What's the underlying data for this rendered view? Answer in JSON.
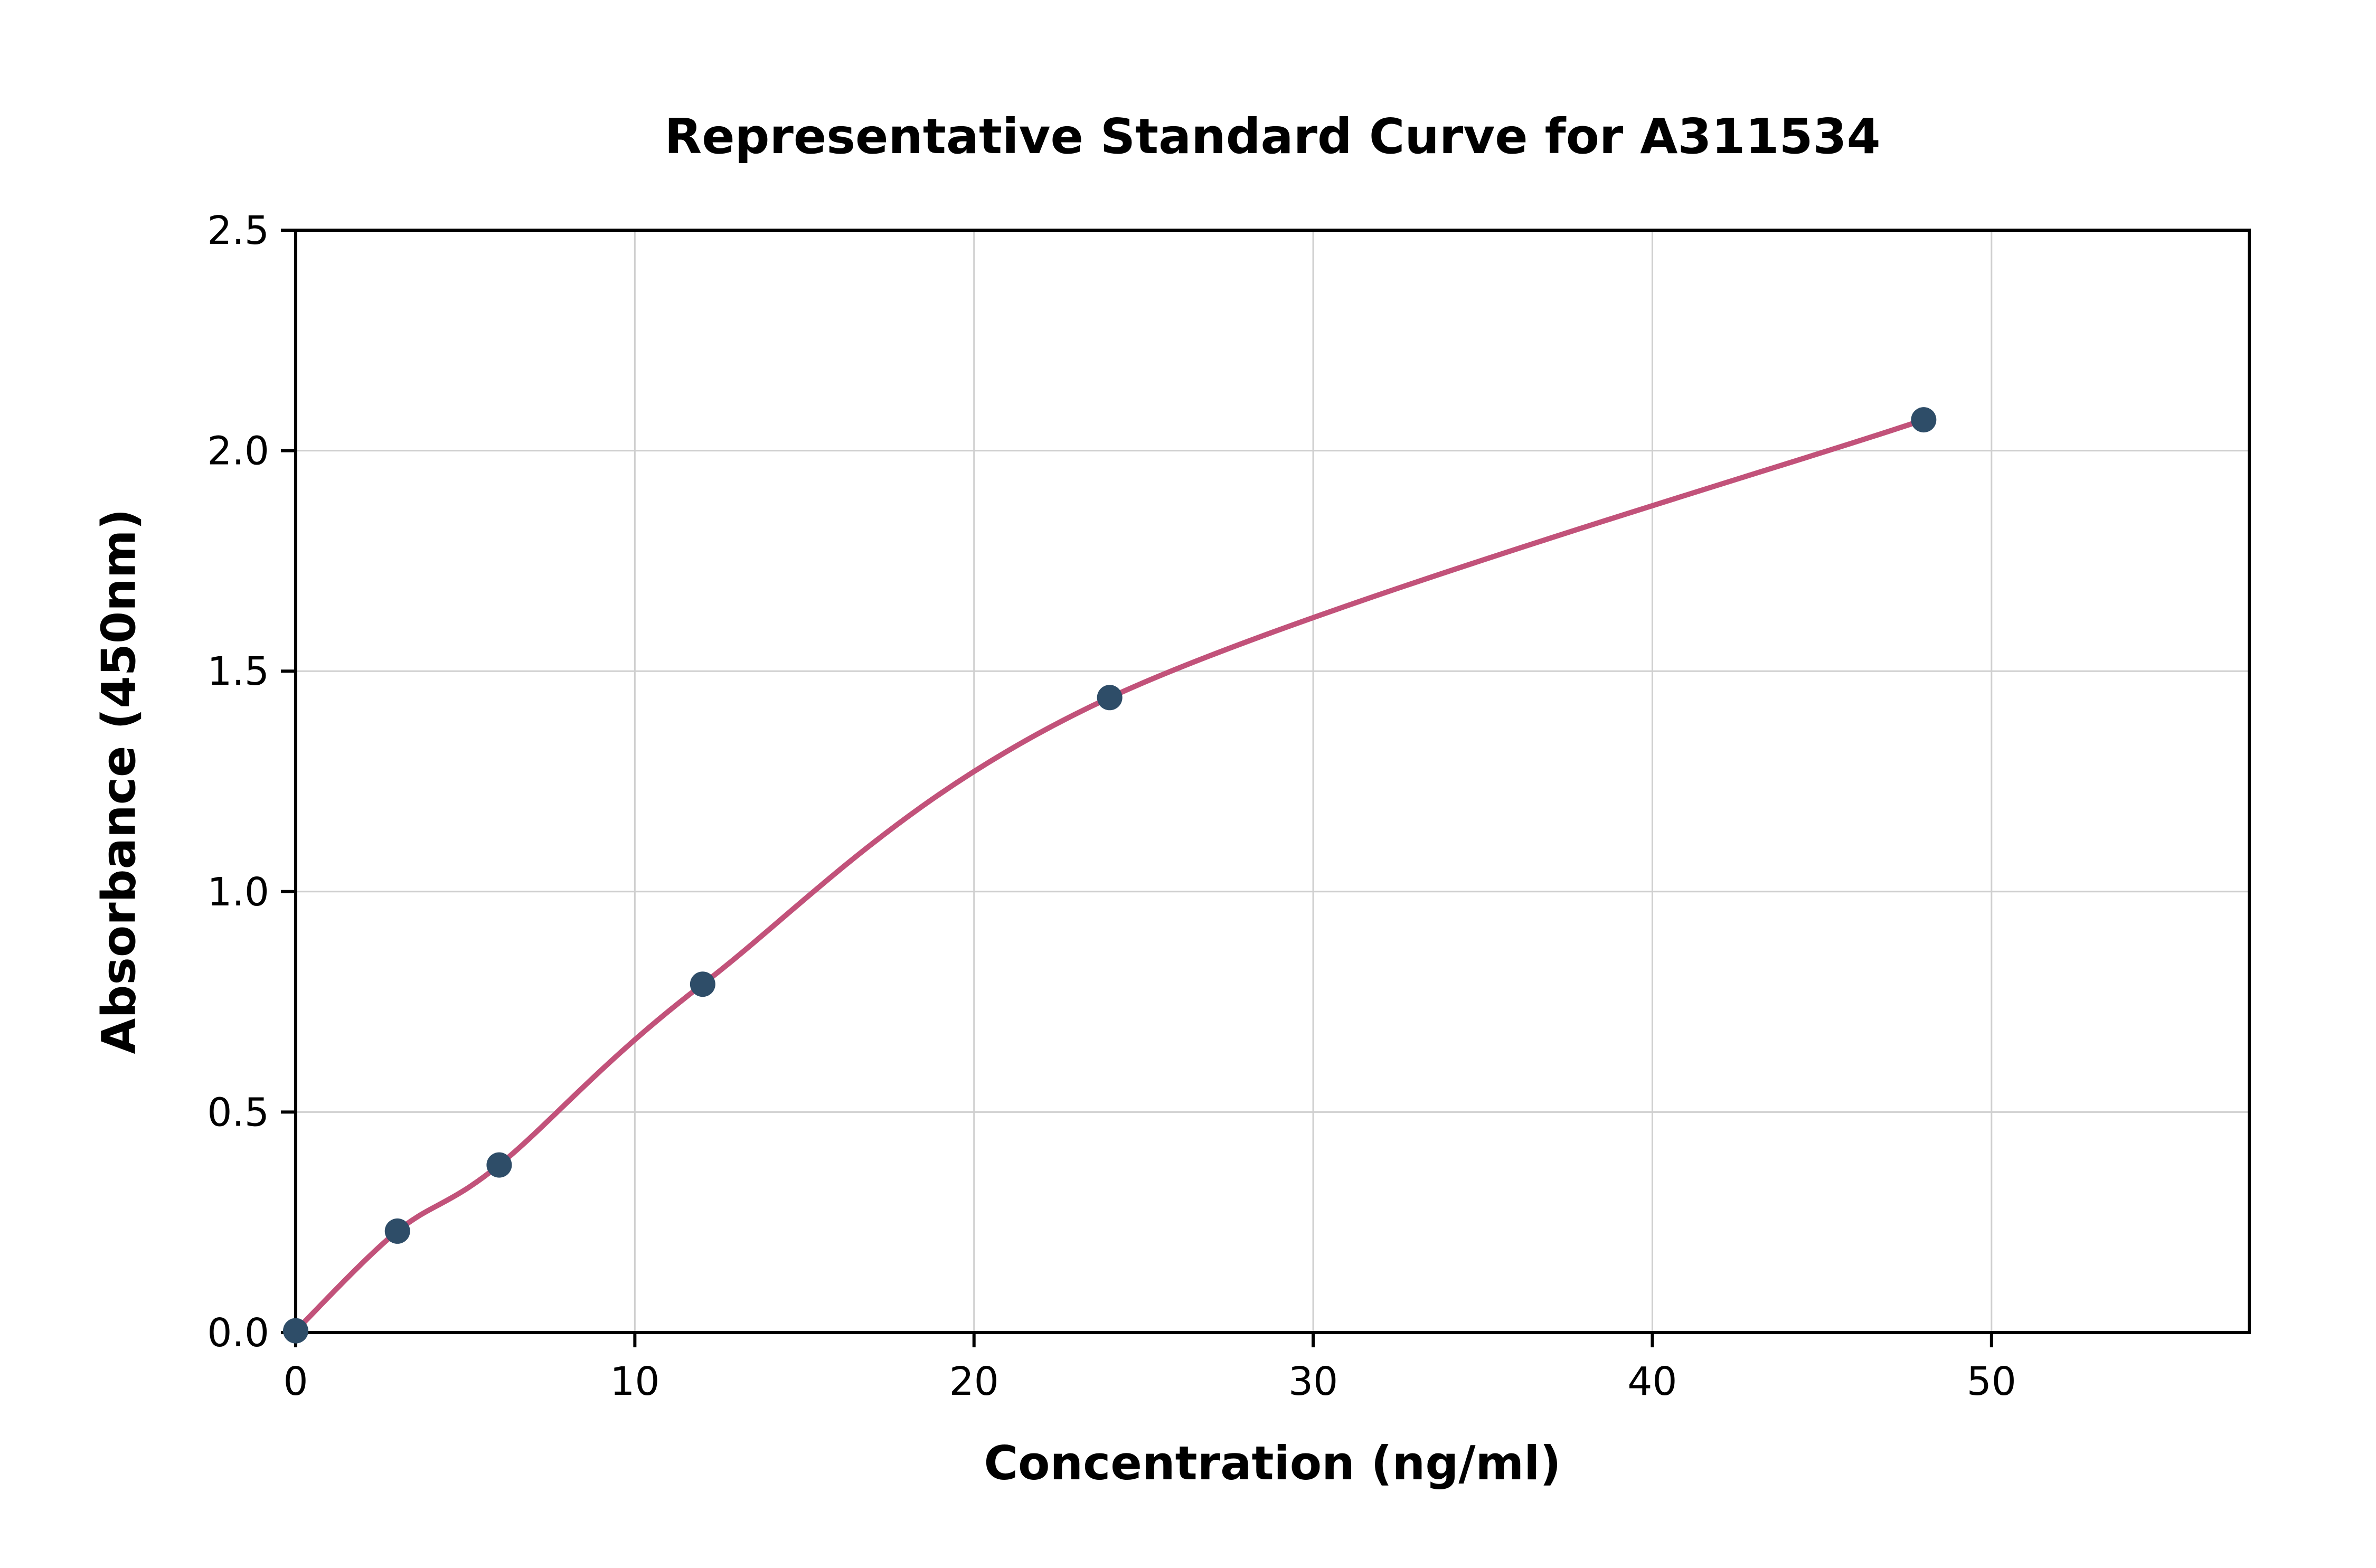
{
  "chart_data": {
    "type": "scatter",
    "title": "Representative Standard Curve for A311534",
    "xlabel": "Concentration (ng/ml)",
    "ylabel": "Absorbance (450nm)",
    "xlim": [
      0,
      57.6
    ],
    "ylim": [
      0,
      2.5
    ],
    "grid": true,
    "legend": "none",
    "xticks": [
      {
        "value": 0,
        "label": "0"
      },
      {
        "value": 10,
        "label": "10"
      },
      {
        "value": 20,
        "label": "20"
      },
      {
        "value": 30,
        "label": "30"
      },
      {
        "value": 40,
        "label": "40"
      },
      {
        "value": 50,
        "label": "50"
      }
    ],
    "yticks": [
      {
        "value": 0.0,
        "label": "0.0"
      },
      {
        "value": 0.5,
        "label": "0.5"
      },
      {
        "value": 1.0,
        "label": "1.0"
      },
      {
        "value": 1.5,
        "label": "1.5"
      },
      {
        "value": 2.0,
        "label": "2.0"
      },
      {
        "value": 2.5,
        "label": "2.5"
      }
    ],
    "points": [
      {
        "x": 0,
        "y": 0.004
      },
      {
        "x": 3,
        "y": 0.23
      },
      {
        "x": 6,
        "y": 0.38
      },
      {
        "x": 12,
        "y": 0.79
      },
      {
        "x": 24,
        "y": 1.44
      },
      {
        "x": 48,
        "y": 2.07
      }
    ],
    "series": [
      {
        "name": "standards",
        "style": "scatter",
        "x": [
          0,
          3,
          6,
          12,
          24,
          48
        ],
        "values": [
          0.004,
          0.23,
          0.38,
          0.79,
          1.44,
          2.07
        ]
      },
      {
        "name": "fit-curve",
        "style": "smooth-line",
        "x": [
          0,
          3,
          6,
          12,
          24,
          48
        ],
        "values": [
          0.004,
          0.23,
          0.38,
          0.79,
          1.44,
          2.07
        ]
      }
    ],
    "colors": {
      "fit_line": "#c2527a",
      "points": "#2e4d68",
      "grid": "#cfcfcf",
      "axis": "#000000",
      "background": "#ffffff"
    }
  }
}
